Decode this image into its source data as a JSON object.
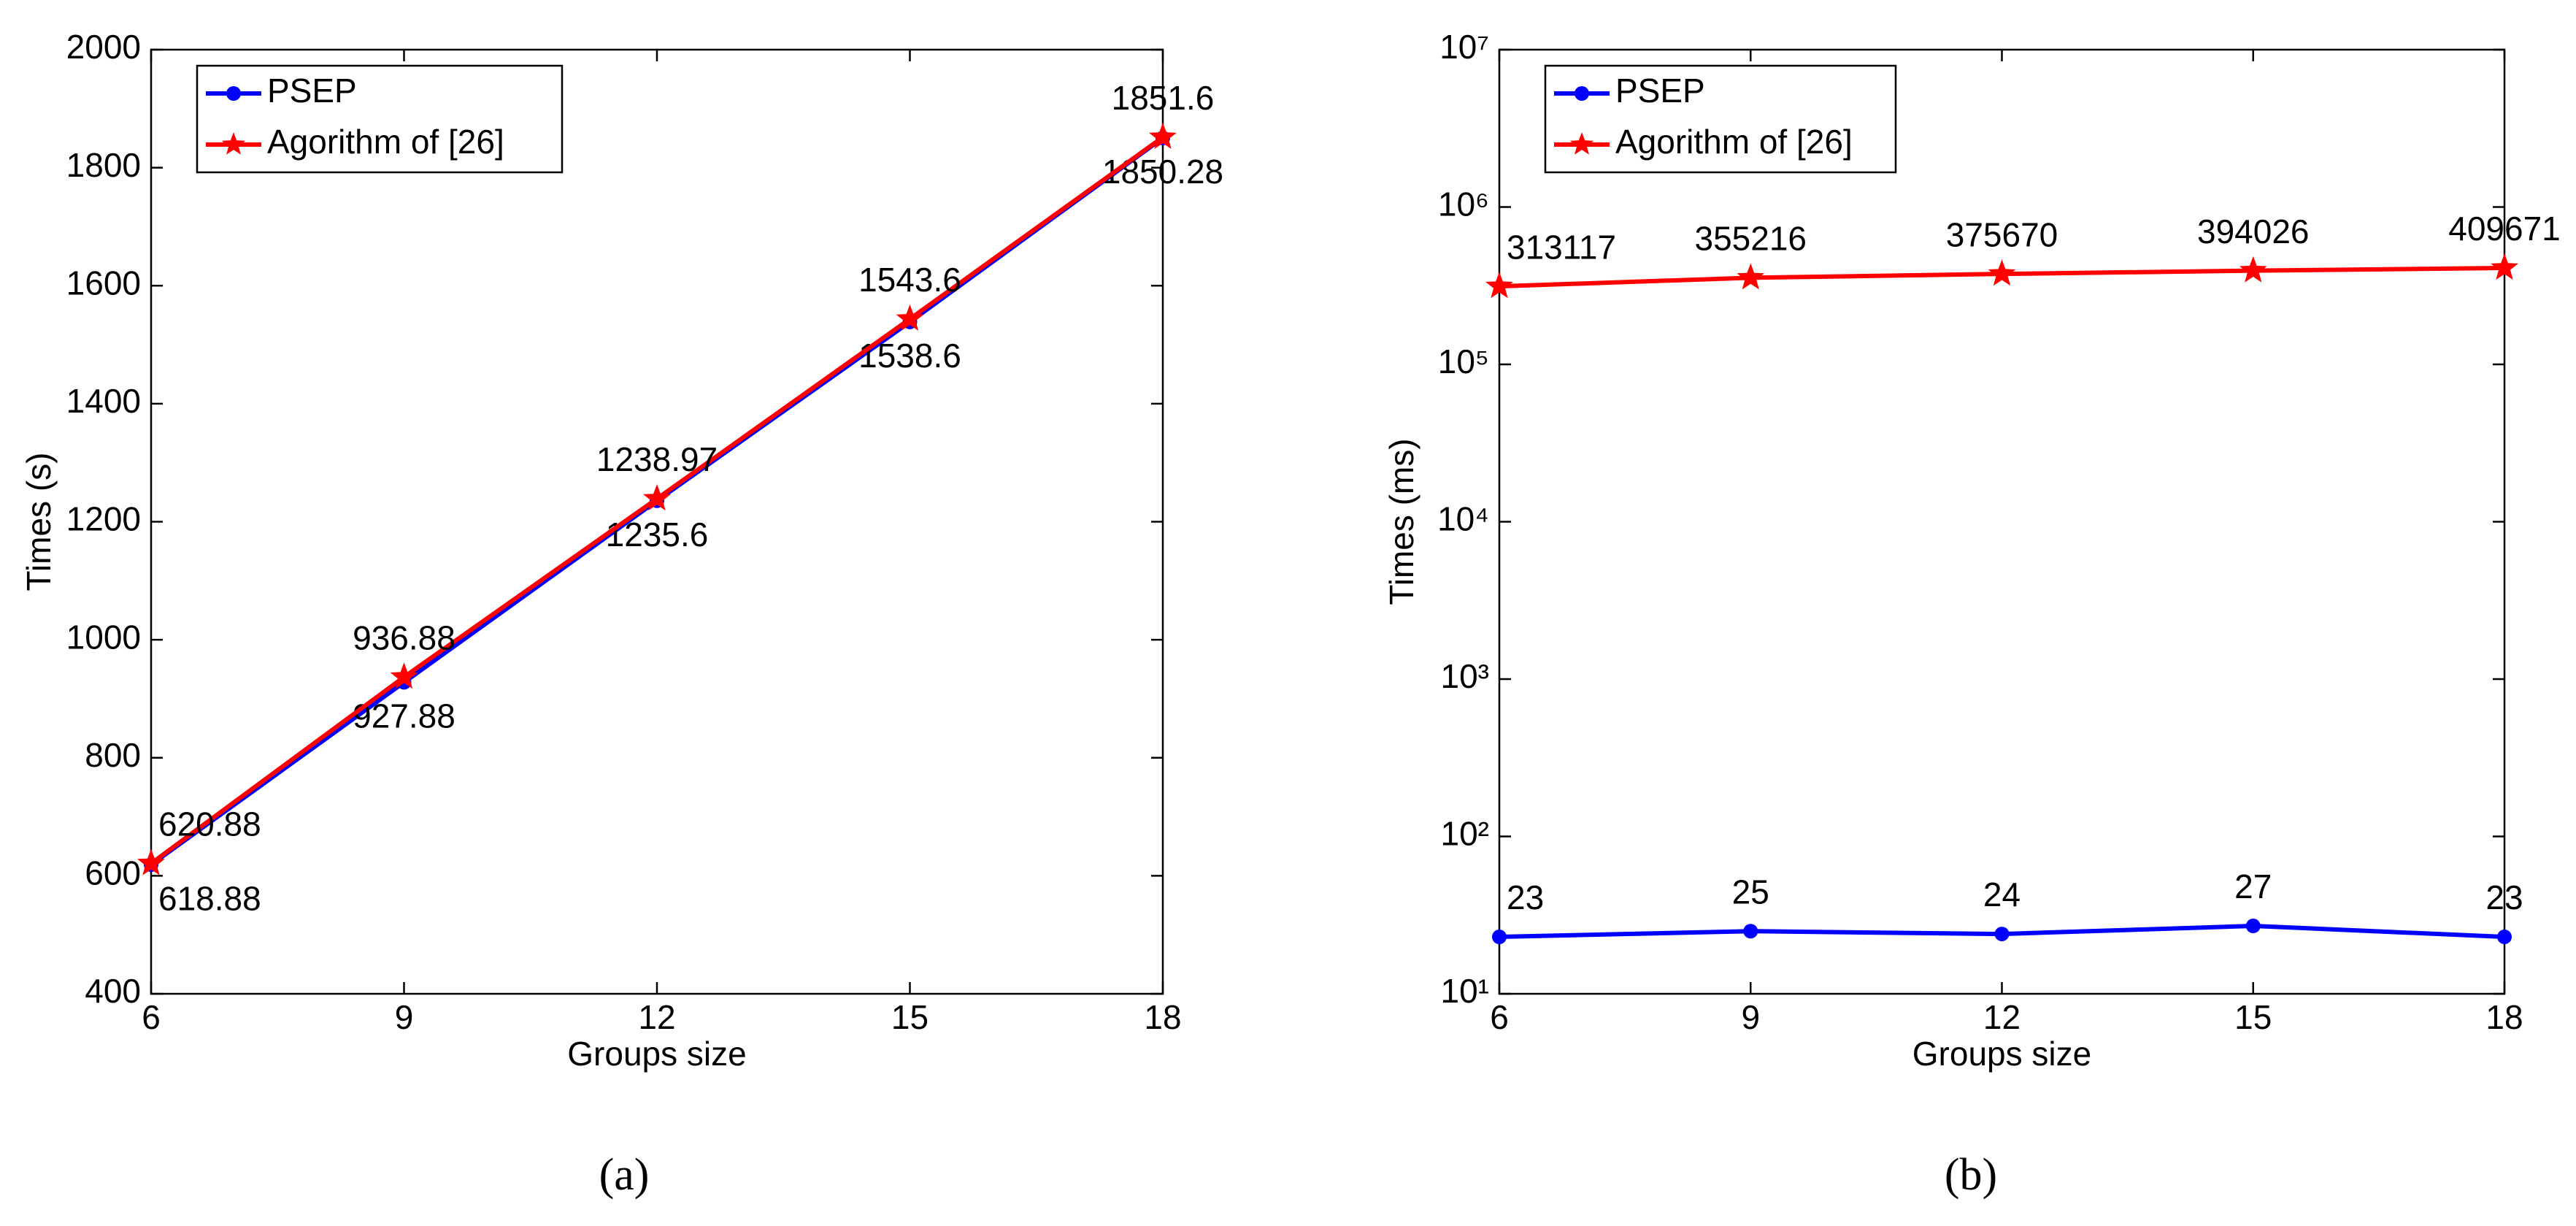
{
  "chart_data": [
    {
      "type": "line",
      "caption": "(a)",
      "xlabel": "Groups size",
      "ylabel": "Times  (s)",
      "x": [
        6,
        9,
        12,
        15,
        18
      ],
      "xlim": [
        6,
        18
      ],
      "xticks": [
        6,
        9,
        12,
        15,
        18
      ],
      "ylim": [
        400,
        2000
      ],
      "yticks": [
        400,
        600,
        800,
        1000,
        1200,
        1400,
        1600,
        1800,
        2000
      ],
      "log_y": false,
      "legend": "upper left",
      "series": [
        {
          "name": "PSEP",
          "color": "#0000ff",
          "marker": "circle",
          "values": [
            618.88,
            927.88,
            1235.6,
            1538.6,
            1850.28
          ]
        },
        {
          "name": "Agorithm of [26]",
          "color": "#ff0000",
          "marker": "star",
          "values": [
            620.88,
            936.88,
            1238.97,
            1543.6,
            1851.6
          ]
        }
      ]
    },
    {
      "type": "line",
      "caption": "(b)",
      "xlabel": "Groups size",
      "ylabel": "Times  (ms)",
      "x": [
        6,
        9,
        12,
        15,
        18
      ],
      "xlim": [
        6,
        18
      ],
      "xticks": [
        6,
        9,
        12,
        15,
        18
      ],
      "ylim": [
        10,
        10000000
      ],
      "yticks": [
        {
          "value": 10,
          "label": "10¹"
        },
        {
          "value": 100,
          "label": "10²"
        },
        {
          "value": 1000,
          "label": "10³"
        },
        {
          "value": 10000,
          "label": "10⁴"
        },
        {
          "value": 100000,
          "label": "10⁵"
        },
        {
          "value": 1000000,
          "label": "10⁶"
        },
        {
          "value": 10000000,
          "label": "10⁷"
        }
      ],
      "log_y": true,
      "legend": "upper left",
      "series": [
        {
          "name": "PSEP",
          "color": "#0000ff",
          "marker": "circle",
          "values": [
            23,
            25,
            24,
            27,
            23
          ]
        },
        {
          "name": "Agorithm of [26]",
          "color": "#ff0000",
          "marker": "star",
          "values": [
            313117,
            355216,
            375670,
            394026,
            409671
          ]
        }
      ]
    }
  ]
}
